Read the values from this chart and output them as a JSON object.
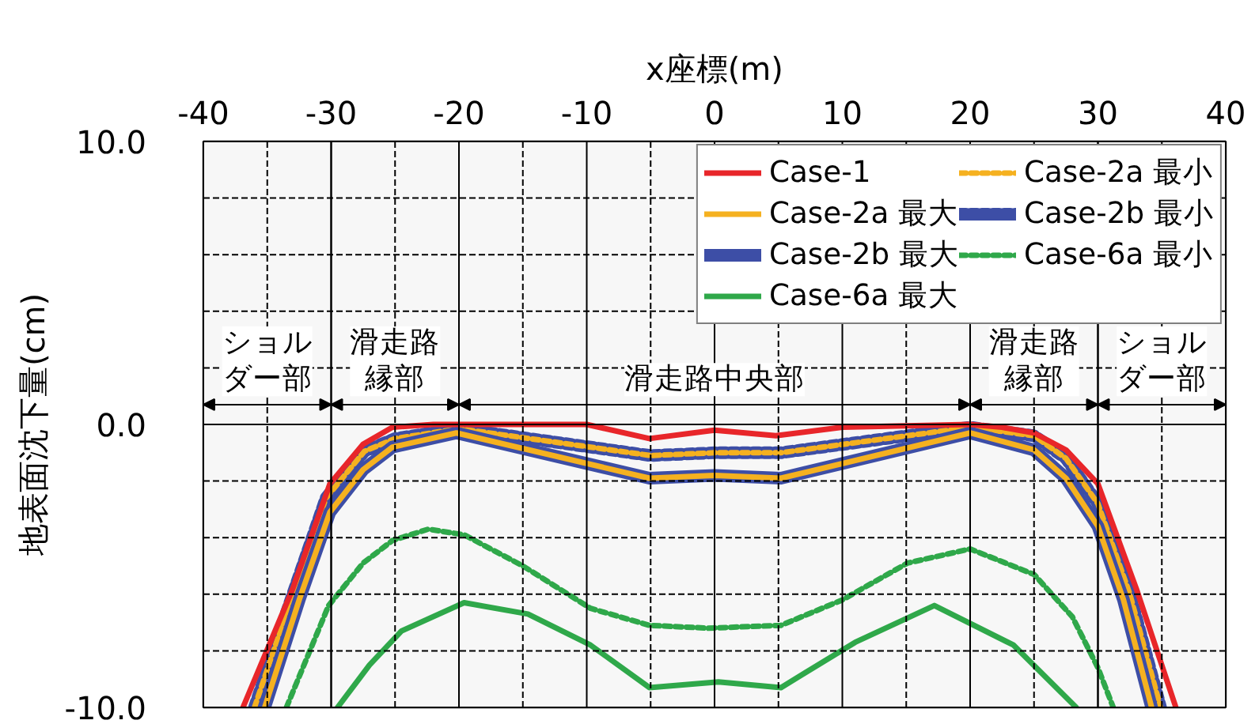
{
  "chart_data": {
    "type": "line",
    "xlabel": "x座標(m)",
    "ylabel": "地表面沈下量(cm)",
    "xlim": [
      -40,
      40
    ],
    "ylim": [
      -10,
      10
    ],
    "xticks": [
      -40,
      {
        "value": -35,
        "label": null
      },
      -30,
      {
        "value": -25,
        "label": null
      },
      -20,
      {
        "value": -15,
        "label": null
      },
      -10,
      {
        "value": -5,
        "label": null
      },
      0,
      {
        "value": 5,
        "label": null
      },
      10,
      {
        "value": 15,
        "label": null
      },
      20,
      {
        "value": 25,
        "label": null
      },
      30,
      {
        "value": 35,
        "label": null
      },
      40
    ],
    "yticks": [
      {
        "value": -10,
        "label": "-10.0"
      },
      {
        "value": -8,
        "label": null
      },
      {
        "value": -6,
        "label": null
      },
      {
        "value": -4,
        "label": null
      },
      {
        "value": -2,
        "label": null
      },
      {
        "value": 0,
        "label": "0.0"
      },
      {
        "value": 2,
        "label": null
      },
      {
        "value": 4,
        "label": null
      },
      {
        "value": 6,
        "label": null
      },
      {
        "value": 8,
        "label": null
      },
      {
        "value": 10,
        "label": "10.0"
      }
    ],
    "grid": true,
    "legend": "top right",
    "series": [
      {
        "name": "Case-1",
        "color": "#e8262a",
        "line_style": "solid",
        "x": [
          -36.9,
          -33,
          -30.1,
          -27.5,
          -25.2,
          -22,
          -20,
          -10,
          -5.1,
          0,
          4.8,
          10,
          20,
          22.5,
          25,
          27.5,
          30,
          33,
          36.1
        ],
        "values": [
          -10,
          -5.8,
          -2.1,
          -0.7,
          -0.1,
          0,
          0,
          0,
          -0.5,
          -0.2,
          -0.4,
          -0.1,
          0,
          -0.1,
          -0.3,
          -0.9,
          -2.1,
          -5.8,
          -10
        ]
      },
      {
        "name": "Case-2a 最大",
        "color": "#f5b120",
        "line_style": "solid",
        "x": [
          -35.2,
          -32.5,
          -30.1,
          -27.5,
          -25.2,
          -20.2,
          -5.1,
          0,
          5.2,
          20,
          25,
          27.5,
          30,
          32,
          34.2
        ],
        "values": [
          -10,
          -6.2,
          -3.1,
          -1.6,
          -0.8,
          -0.3,
          -1.9,
          -1.8,
          -1.9,
          -0.3,
          -0.9,
          -1.9,
          -3.6,
          -6.2,
          -10
        ]
      },
      {
        "name": "Case-2b 最大",
        "color": "#3d4ea6",
        "line_style": "solid",
        "x": [
          -35.2,
          -32.5,
          -30.1,
          -27.5,
          -25.2,
          -20.2,
          -5.1,
          0,
          5.2,
          20,
          25,
          27.5,
          30,
          32,
          34.2
        ],
        "values": [
          -10,
          -6.2,
          -3.1,
          -1.6,
          -0.8,
          -0.3,
          -1.9,
          -1.8,
          -1.9,
          -0.3,
          -0.9,
          -1.9,
          -3.6,
          -6.2,
          -10
        ]
      },
      {
        "name": "Case-6a 最大",
        "color": "#2fa84a",
        "line_style": "solid",
        "x": [
          -29.5,
          -27,
          -24.5,
          -19.6,
          -14.6,
          -9.7,
          -5.1,
          0.3,
          5.2,
          11,
          17.2,
          23.4,
          28.3
        ],
        "values": [
          -10,
          -8.5,
          -7.3,
          -6.3,
          -6.7,
          -7.8,
          -9.3,
          -9.1,
          -9.3,
          -7.7,
          -6.4,
          -7.8,
          -10
        ]
      },
      {
        "name": "Case-2a 最小",
        "color": "#f5b120",
        "line_style": "dashed",
        "x": [
          -36,
          -33,
          -30.4,
          -27.4,
          -25,
          -20,
          -5,
          0,
          5.2,
          20,
          25,
          27.5,
          30,
          32.5,
          34.9
        ],
        "values": [
          -10,
          -6,
          -2.6,
          -0.95,
          -0.5,
          -0.15,
          -1.1,
          -1,
          -1.0,
          -0.1,
          -0.4,
          -1.2,
          -2.8,
          -6,
          -10
        ]
      },
      {
        "name": "Case-2b 最小",
        "color": "#3d4ea6",
        "line_style": "dashed",
        "x": [
          -36,
          -33,
          -30.4,
          -27.4,
          -25,
          -20,
          -5,
          0,
          5.2,
          20,
          25,
          27.5,
          30,
          32.5,
          34.9
        ],
        "values": [
          -10,
          -6,
          -2.6,
          -0.95,
          -0.5,
          -0.15,
          -1.1,
          -1,
          -1.0,
          -0.1,
          -0.4,
          -1.2,
          -2.8,
          -6,
          -10
        ]
      },
      {
        "name": "Case-6a 最小",
        "color": "#2fa84a",
        "line_style": "dashed",
        "x": [
          -33.5,
          -30.2,
          -27.5,
          -25.2,
          -22.4,
          -19.6,
          -15,
          -9.7,
          -5.1,
          -0.5,
          5.2,
          10,
          15.1,
          20,
          25,
          28,
          30,
          31.2
        ],
        "values": [
          -10,
          -6.4,
          -4.9,
          -4.1,
          -3.7,
          -3.9,
          -5,
          -6.5,
          -7.1,
          -7.2,
          -7.1,
          -6.2,
          -4.9,
          -4.4,
          -5.3,
          -6.8,
          -8.6,
          -10
        ]
      }
    ],
    "bands": [
      {
        "axis": "x",
        "from": -40,
        "to": -30,
        "label": "ショルダー部",
        "color": "#f7f7f7"
      },
      {
        "axis": "x",
        "from": -30,
        "to": -20,
        "label": "滑走路縁部",
        "color": "#f7f7f7"
      },
      {
        "axis": "x",
        "from": -20,
        "to": 20,
        "label": "滑走路中央部",
        "color": "#f7f7f7"
      },
      {
        "axis": "x",
        "from": 20,
        "to": 30,
        "label": "滑走路縁部",
        "color": "#f7f7f7"
      },
      {
        "axis": "x",
        "from": 30,
        "to": 40,
        "label": "ショルダー部",
        "color": "#f7f7f7"
      }
    ]
  }
}
